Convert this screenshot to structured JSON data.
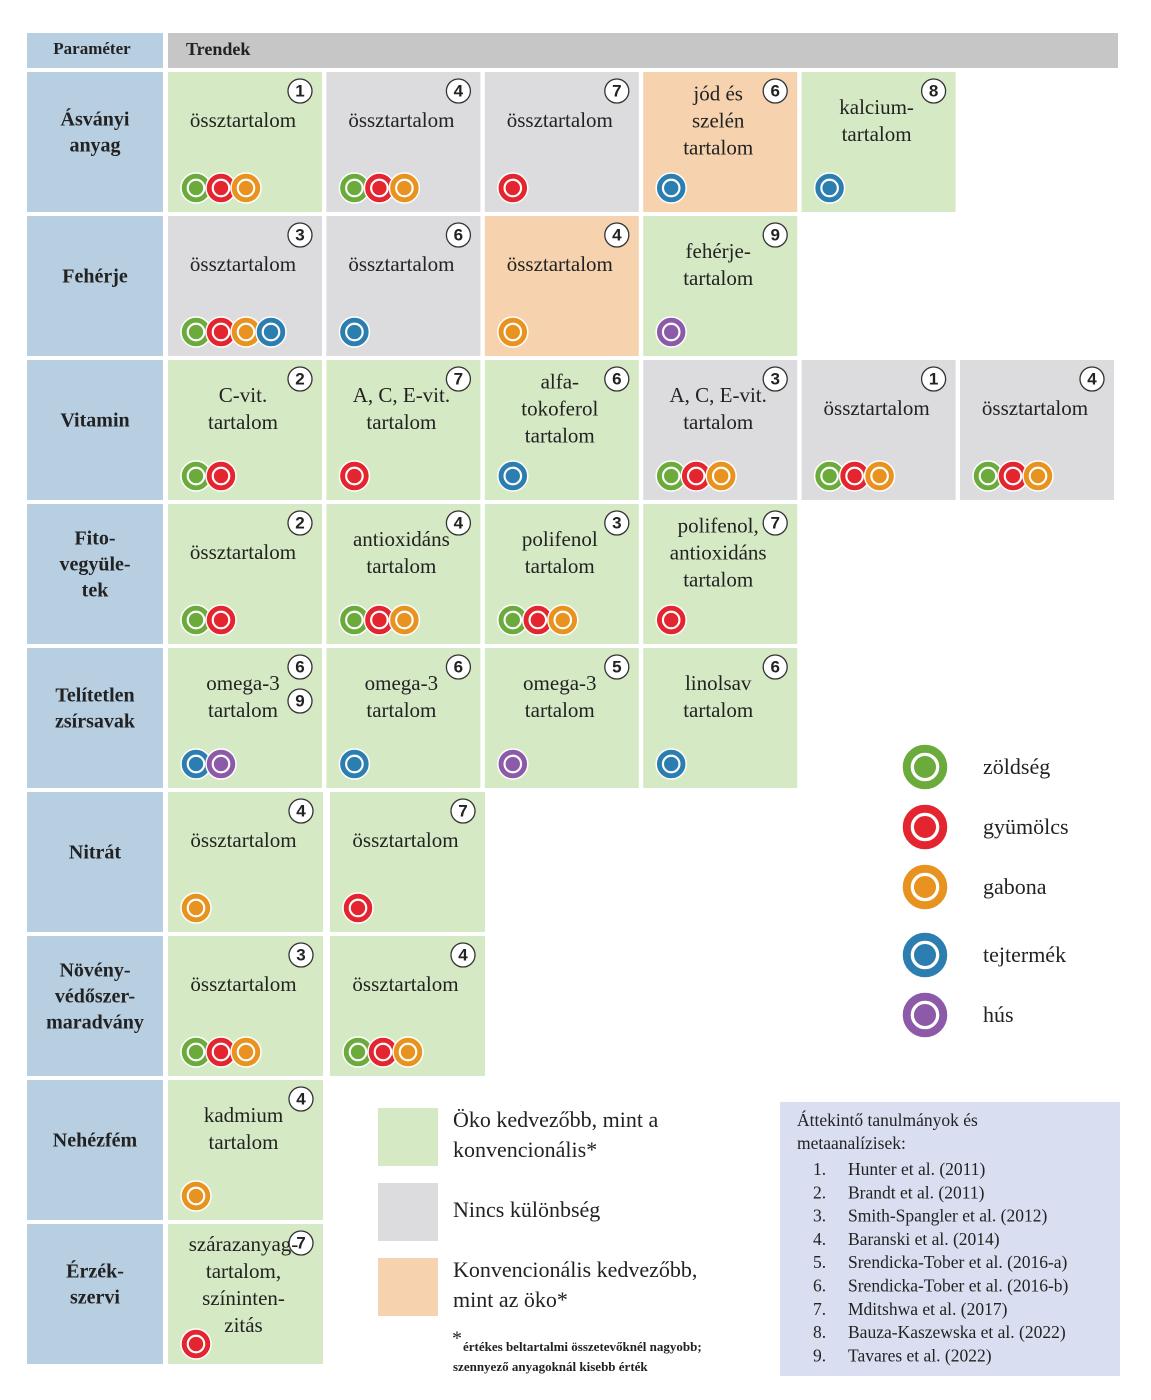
{
  "header": {
    "parameter": "Paraméter",
    "trends": "Trendek"
  },
  "rows": [
    {
      "parameter": [
        "Ásványi",
        "anyag"
      ],
      "cells": [
        {
          "refs": [
            1
          ],
          "text": [
            "össztartalom"
          ]
        },
        {
          "refs": [
            4
          ],
          "text": [
            "össztartalom"
          ]
        },
        {
          "refs": [
            7
          ],
          "text": [
            "össztartalom"
          ]
        },
        {
          "refs": [
            6
          ],
          "text": [
            "jód és",
            "szelén",
            "tartalom"
          ]
        },
        {
          "refs": [
            8
          ],
          "text": [
            "kalcium-",
            "tartalom"
          ]
        }
      ]
    },
    {
      "parameter": [
        "Fehérje"
      ],
      "cells": [
        {
          "refs": [
            3
          ],
          "text": [
            "össztartalom"
          ]
        },
        {
          "refs": [
            6
          ],
          "text": [
            "össztartalom"
          ]
        },
        {
          "refs": [
            4
          ],
          "text": [
            "össztartalom"
          ]
        },
        {
          "refs": [
            9
          ],
          "text": [
            "fehérje-",
            "tartalom"
          ]
        }
      ]
    },
    {
      "parameter": [
        "Vitamin"
      ],
      "cells": [
        {
          "refs": [
            2
          ],
          "text": [
            "C-vit.",
            "tartalom"
          ]
        },
        {
          "refs": [
            7
          ],
          "text": [
            "A, C, E-vit.",
            "tartalom"
          ]
        },
        {
          "refs": [
            6
          ],
          "text": [
            "alfa-",
            "tokoferol",
            "tartalom"
          ]
        },
        {
          "refs": [
            3
          ],
          "text": [
            "A, C, E-vit.",
            "tartalom"
          ]
        },
        {
          "refs": [
            1
          ],
          "text": [
            "össztartalom"
          ]
        },
        {
          "refs": [
            4
          ],
          "text": [
            "össztartalom"
          ]
        }
      ]
    },
    {
      "parameter": [
        "Fito-",
        "vegyüle-",
        "tek"
      ],
      "cells": [
        {
          "refs": [
            2
          ],
          "text": [
            "össztartalom"
          ]
        },
        {
          "refs": [
            4
          ],
          "text": [
            "antioxidáns",
            "tartalom"
          ]
        },
        {
          "refs": [
            3
          ],
          "text": [
            "polifenol",
            "tartalom"
          ]
        },
        {
          "refs": [
            7
          ],
          "text": [
            "polifenol,",
            "antioxidáns",
            "tartalom"
          ]
        }
      ]
    },
    {
      "parameter": [
        "Telítetlen",
        "zsírsavak"
      ],
      "cells": [
        {
          "refs": [
            6,
            9
          ],
          "text": [
            "omega-3",
            "tartalom"
          ]
        },
        {
          "refs": [
            6
          ],
          "text": [
            "omega-3",
            "tartalom"
          ]
        },
        {
          "refs": [
            5
          ],
          "text": [
            "omega-3",
            "tartalom"
          ]
        },
        {
          "refs": [
            6
          ],
          "text": [
            "linolsav",
            "tartalom"
          ]
        }
      ]
    },
    {
      "parameter": [
        "Nitrát"
      ],
      "cells": [
        {
          "refs": [
            4
          ],
          "text": [
            "össztartalom"
          ]
        },
        {
          "refs": [
            7
          ],
          "text": [
            "össztartalom"
          ]
        }
      ]
    },
    {
      "parameter": [
        "Növény-",
        "védőszer-",
        "maradvány"
      ],
      "cells": [
        {
          "refs": [
            3
          ],
          "text": [
            "össztartalom"
          ]
        },
        {
          "refs": [
            4
          ],
          "text": [
            "össztartalom"
          ]
        }
      ]
    },
    {
      "parameter": [
        "Nehézfém"
      ],
      "cells": [
        {
          "refs": [
            4
          ],
          "text": [
            "kadmium",
            "tartalom"
          ]
        }
      ]
    },
    {
      "parameter": [
        "Érzék-",
        "szervi"
      ],
      "cells": [
        {
          "refs": [
            7
          ],
          "text": [
            "szárazanyag-",
            "tartalom,",
            "színinten-",
            "zitás"
          ]
        }
      ]
    }
  ],
  "icon_legend": [
    "zöldség",
    "gyümölcs",
    "gabona",
    "tejtermék",
    "hús"
  ],
  "color_legend": [
    [
      "Öko kedvezőbb, mint a",
      "konvencionális*"
    ],
    [
      "Nincs különbség"
    ],
    [
      "Konvencionális kedvezőbb,",
      "mint az öko*"
    ]
  ],
  "footnote": {
    "star": "*",
    "lines": [
      "értékes beltartalmi összetevőknél nagyobb;",
      "szennyező anyagoknál kisebb érték"
    ]
  },
  "references": {
    "title": [
      "Áttekintő tanulmányok és",
      "metaanalízisek:"
    ],
    "items": [
      {
        "number": "1.",
        "text": "Hunter et al. (2011)"
      },
      {
        "number": "2.",
        "text": "Brandt et al. (2011)"
      },
      {
        "number": "3.",
        "text": "Smith-Spangler et al. (2012)"
      },
      {
        "number": "4.",
        "text": "Baranski et al. (2014)"
      },
      {
        "number": "5.",
        "text": "Srendicka-Tober et al. (2016-a)"
      },
      {
        "number": "6.",
        "text": "Srendicka-Tober et al. (2016-b)"
      },
      {
        "number": "7.",
        "text": "Mditshwa et al. (2017)"
      },
      {
        "number": "8.",
        "text": "Bauza-Kaszewska et al. (2022)"
      },
      {
        "number": "9.",
        "text": "Tavares et al. (2022)"
      }
    ]
  }
}
